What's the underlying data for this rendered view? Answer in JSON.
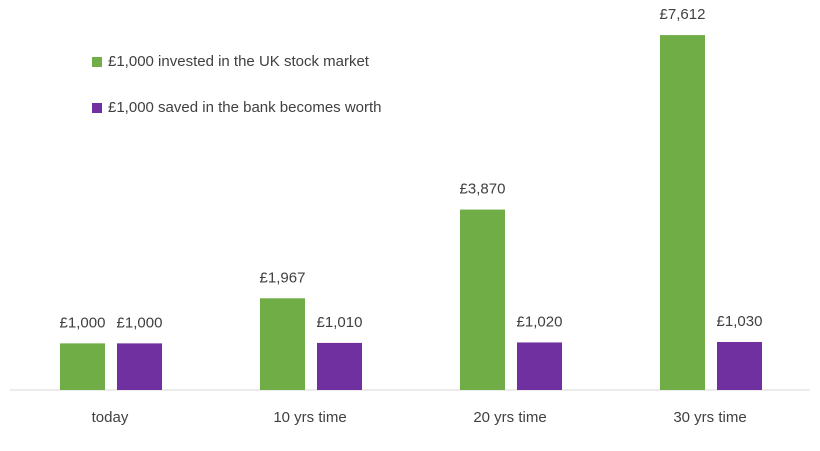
{
  "chart_data": {
    "type": "bar",
    "categories": [
      "today",
      "10 yrs time",
      "20 yrs time",
      "30 yrs time"
    ],
    "series": [
      {
        "name": "£1,000 invested in the UK stock market",
        "color": "#70ad47",
        "values": [
          1000,
          1967,
          3870,
          7612
        ],
        "value_labels": [
          "£1,000",
          "£1,967",
          "£3,870",
          "£7,612"
        ]
      },
      {
        "name": "£1,000 saved in the bank becomes worth",
        "color": "#7030a0",
        "values": [
          1000,
          1010,
          1020,
          1030
        ],
        "value_labels": [
          "£1,000",
          "£1,010",
          "£1,020",
          "£1,030"
        ]
      }
    ],
    "ylim": [
      0,
      8000
    ],
    "legend": "top-left"
  }
}
